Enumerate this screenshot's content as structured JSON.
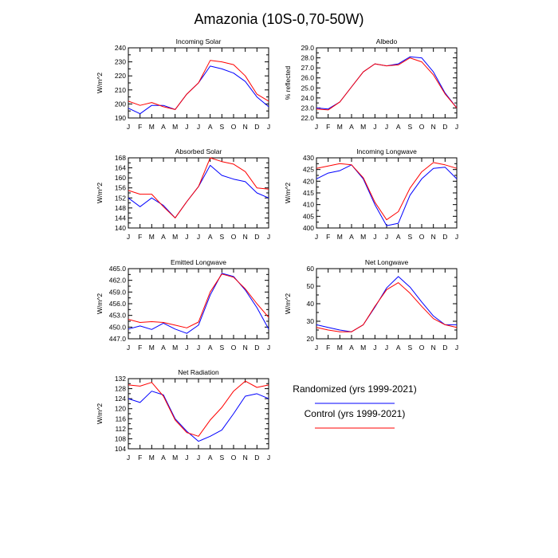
{
  "figure": {
    "title": "Amazonia (10S-0,70-50W)"
  },
  "legend": {
    "randomized_label": "Randomized (yrs 1999-2021)",
    "control_label": "Control (yrs 1999-2021)",
    "randomized_color": "#0000ff",
    "control_color": "#ff0000"
  },
  "chart_data": [
    {
      "type": "line",
      "title": "Incoming Solar",
      "ylabel": "W/m^2",
      "xlabel": "",
      "categories": [
        "J",
        "F",
        "M",
        "A",
        "M",
        "J",
        "J",
        "A",
        "S",
        "O",
        "N",
        "D",
        "J"
      ],
      "ylim": [
        190,
        240
      ],
      "yticks": [
        190,
        200,
        210,
        220,
        230,
        240
      ],
      "ytick_labels": [
        "190",
        "200",
        "210",
        "220",
        "230",
        "240"
      ],
      "series": [
        {
          "name": "Randomized (yrs 1999-2021)",
          "values": [
            197,
            193,
            199,
            199,
            196,
            207,
            215,
            227,
            225,
            222,
            216,
            205,
            198
          ]
        },
        {
          "name": "Control (yrs 1999-2021)",
          "values": [
            202,
            199,
            201,
            198,
            196,
            207,
            215,
            231,
            230,
            228,
            220,
            207,
            202
          ]
        }
      ]
    },
    {
      "type": "line",
      "title": "Albedo",
      "ylabel": "% reflected",
      "xlabel": "",
      "categories": [
        "J",
        "F",
        "M",
        "A",
        "M",
        "J",
        "J",
        "A",
        "S",
        "O",
        "N",
        "D",
        "J"
      ],
      "ylim": [
        22.0,
        29.0
      ],
      "yticks": [
        22.0,
        23.0,
        24.0,
        25.0,
        26.0,
        27.0,
        28.0,
        29.0
      ],
      "ytick_labels": [
        "22.0",
        "23.0",
        "24.0",
        "25.0",
        "26.0",
        "27.0",
        "28.0",
        "29.0"
      ],
      "series": [
        {
          "name": "Randomized (yrs 1999-2021)",
          "values": [
            23.0,
            22.9,
            23.6,
            25.1,
            26.6,
            27.4,
            27.2,
            27.4,
            28.1,
            28.0,
            26.6,
            24.5,
            23.0
          ]
        },
        {
          "name": "Control (yrs 1999-2021)",
          "values": [
            22.9,
            22.8,
            23.6,
            25.1,
            26.6,
            27.4,
            27.2,
            27.3,
            28.0,
            27.6,
            26.3,
            24.4,
            23.0
          ]
        }
      ]
    },
    {
      "type": "line",
      "title": "Absorbed Solar",
      "ylabel": "W/m^2",
      "xlabel": "",
      "categories": [
        "J",
        "F",
        "M",
        "A",
        "M",
        "J",
        "J",
        "A",
        "S",
        "O",
        "N",
        "D",
        "J"
      ],
      "ylim": [
        140,
        168
      ],
      "yticks": [
        140,
        144,
        148,
        152,
        156,
        160,
        164,
        168
      ],
      "ytick_labels": [
        "140",
        "144",
        "148",
        "152",
        "156",
        "160",
        "164",
        "168"
      ],
      "series": [
        {
          "name": "Randomized (yrs 1999-2021)",
          "values": [
            152,
            148.5,
            152,
            149,
            144,
            150.5,
            156.5,
            165,
            161,
            159.5,
            158.5,
            154,
            152
          ]
        },
        {
          "name": "Control (yrs 1999-2021)",
          "values": [
            155,
            153.5,
            153.5,
            148.5,
            144,
            150.5,
            156.5,
            168,
            166.5,
            165.5,
            162.5,
            156,
            155.5
          ]
        }
      ]
    },
    {
      "type": "line",
      "title": "Incoming Longwave",
      "ylabel": "W/m^2",
      "xlabel": "",
      "categories": [
        "J",
        "F",
        "M",
        "A",
        "M",
        "J",
        "J",
        "A",
        "S",
        "O",
        "N",
        "D",
        "J"
      ],
      "ylim": [
        400,
        430
      ],
      "yticks": [
        400,
        405,
        410,
        415,
        420,
        425,
        430
      ],
      "ytick_labels": [
        "400",
        "405",
        "410",
        "415",
        "420",
        "425",
        "430"
      ],
      "series": [
        {
          "name": "Randomized (yrs 1999-2021)",
          "values": [
            421,
            423.5,
            424.5,
            427,
            421,
            410,
            401,
            402,
            414,
            421,
            425.5,
            426,
            421
          ]
        },
        {
          "name": "Control (yrs 1999-2021)",
          "values": [
            425.5,
            426.5,
            427.5,
            427,
            421.5,
            411,
            403.5,
            407,
            417,
            424,
            428,
            427,
            425.5
          ]
        }
      ]
    },
    {
      "type": "line",
      "title": "Emitted Longwave",
      "ylabel": "W/m^2",
      "xlabel": "",
      "categories": [
        "J",
        "F",
        "M",
        "A",
        "M",
        "J",
        "J",
        "A",
        "S",
        "O",
        "N",
        "D",
        "J"
      ],
      "ylim": [
        447.0,
        465.0
      ],
      "yticks": [
        447.0,
        450.0,
        453.0,
        456.0,
        459.0,
        462.0,
        465.0
      ],
      "ytick_labels": [
        "447.0",
        "450.0",
        "453.0",
        "456.0",
        "459.0",
        "462.0",
        "465.0"
      ],
      "series": [
        {
          "name": "Randomized (yrs 1999-2021)",
          "values": [
            449.5,
            450.3,
            449.4,
            451,
            449.5,
            448.4,
            450.5,
            458.2,
            463.8,
            463,
            459.5,
            455,
            449.5
          ]
        },
        {
          "name": "Control (yrs 1999-2021)",
          "values": [
            452,
            451.2,
            451.4,
            451.2,
            450.5,
            449.8,
            451.3,
            459,
            463.6,
            462.8,
            459.8,
            456,
            452.5
          ]
        }
      ]
    },
    {
      "type": "line",
      "title": "Net Longwave",
      "ylabel": "W/m^2",
      "xlabel": "",
      "categories": [
        "J",
        "F",
        "M",
        "A",
        "M",
        "J",
        "J",
        "A",
        "S",
        "O",
        "N",
        "D",
        "J"
      ],
      "ylim": [
        20,
        60
      ],
      "yticks": [
        20,
        30,
        40,
        50,
        60
      ],
      "ytick_labels": [
        "20",
        "30",
        "40",
        "50",
        "60"
      ],
      "series": [
        {
          "name": "Randomized (yrs 1999-2021)",
          "values": [
            28,
            26.5,
            25,
            24,
            28,
            38,
            49,
            55.5,
            49.5,
            41,
            33,
            28,
            28
          ]
        },
        {
          "name": "Control (yrs 1999-2021)",
          "values": [
            26.5,
            25,
            24,
            24,
            28,
            38.5,
            48,
            52,
            46,
            38.5,
            31.5,
            28,
            26.5
          ]
        }
      ]
    },
    {
      "type": "line",
      "title": "Net Radiation",
      "ylabel": "W/m^2",
      "xlabel": "",
      "categories": [
        "J",
        "F",
        "M",
        "A",
        "M",
        "J",
        "J",
        "A",
        "S",
        "O",
        "N",
        "D",
        "J"
      ],
      "ylim": [
        104,
        132
      ],
      "yticks": [
        104,
        108,
        112,
        116,
        120,
        124,
        128,
        132
      ],
      "ytick_labels": [
        "104",
        "108",
        "112",
        "116",
        "120",
        "124",
        "128",
        "132"
      ],
      "series": [
        {
          "name": "Randomized (yrs 1999-2021)",
          "values": [
            124,
            122.5,
            127,
            125.5,
            116,
            111,
            107,
            109,
            111.5,
            118,
            125,
            126,
            124
          ]
        },
        {
          "name": "Control (yrs 1999-2021)",
          "values": [
            129.5,
            129,
            130.5,
            125,
            115.5,
            110.5,
            109,
            115.5,
            120.5,
            127,
            131,
            128.5,
            129.5
          ]
        }
      ]
    }
  ]
}
